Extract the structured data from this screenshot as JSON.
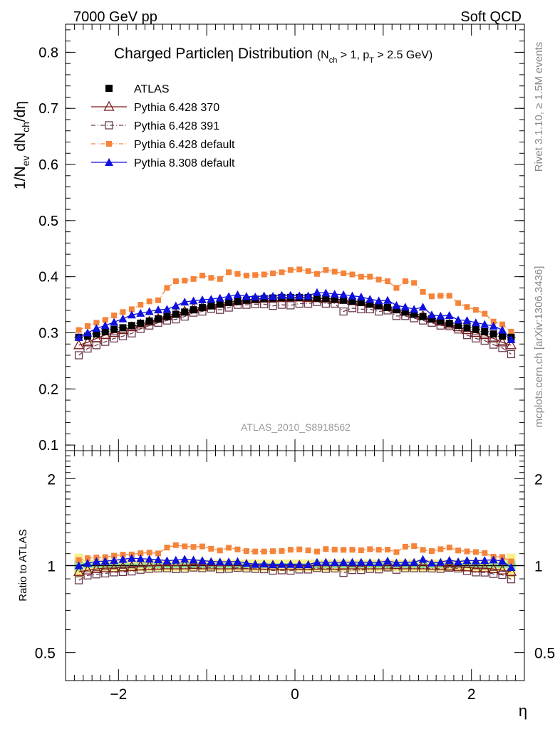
{
  "header": {
    "left": "7000 GeV pp",
    "right": "Soft QCD"
  },
  "side_labels": {
    "rivet": "Rivet 3.1.10, ≥ 1.5M events",
    "mcplots": "mcplots.cern.ch [arXiv:1306.3436]"
  },
  "chart_data": [
    {
      "type": "scatter",
      "panel": "main",
      "title": "Charged Particleη Distribution",
      "title_cut": "(N_ch > 1, p_T > 2.5 GeV)",
      "ylabel": "1/N_ev dN_ch/dη",
      "ylim": [
        0.09,
        0.85
      ],
      "xlim": [
        -2.6,
        2.6
      ],
      "analysis_label": "ATLAS_2010_S8918562",
      "legend_position": "top-left",
      "y_ticks": [
        "0.1",
        "0.2",
        "0.3",
        "0.4",
        "0.5",
        "0.6",
        "0.7",
        "0.8"
      ],
      "x": [
        -2.45,
        -2.35,
        -2.25,
        -2.15,
        -2.05,
        -1.95,
        -1.85,
        -1.75,
        -1.65,
        -1.55,
        -1.45,
        -1.35,
        -1.25,
        -1.15,
        -1.05,
        -0.95,
        -0.85,
        -0.75,
        -0.65,
        -0.55,
        -0.45,
        -0.35,
        -0.25,
        -0.15,
        -0.05,
        0.05,
        0.15,
        0.25,
        0.35,
        0.45,
        0.55,
        0.65,
        0.75,
        0.85,
        0.95,
        1.05,
        1.15,
        1.25,
        1.35,
        1.45,
        1.55,
        1.65,
        1.75,
        1.85,
        1.95,
        2.05,
        2.15,
        2.25,
        2.35,
        2.45
      ],
      "series": [
        {
          "name": "ATLAS",
          "marker": "filled-square",
          "color": "#000000",
          "values": [
            0.292,
            0.294,
            0.298,
            0.302,
            0.306,
            0.309,
            0.313,
            0.317,
            0.321,
            0.325,
            0.329,
            0.333,
            0.337,
            0.341,
            0.345,
            0.348,
            0.351,
            0.354,
            0.356,
            0.358,
            0.36,
            0.361,
            0.362,
            0.363,
            0.363,
            0.363,
            0.363,
            0.362,
            0.361,
            0.36,
            0.358,
            0.356,
            0.354,
            0.351,
            0.348,
            0.345,
            0.341,
            0.337,
            0.333,
            0.329,
            0.325,
            0.321,
            0.317,
            0.313,
            0.309,
            0.306,
            0.302,
            0.298,
            0.294,
            0.292
          ]
        },
        {
          "name": "Pythia 6.428 370",
          "marker": "open-triangle",
          "color": "#7b1a1a",
          "values": [
            0.278,
            0.283,
            0.29,
            0.296,
            0.3,
            0.305,
            0.31,
            0.315,
            0.32,
            0.325,
            0.33,
            0.334,
            0.338,
            0.343,
            0.346,
            0.349,
            0.352,
            0.355,
            0.357,
            0.359,
            0.36,
            0.361,
            0.362,
            0.362,
            0.363,
            0.363,
            0.362,
            0.362,
            0.361,
            0.36,
            0.359,
            0.357,
            0.355,
            0.352,
            0.349,
            0.346,
            0.343,
            0.338,
            0.334,
            0.33,
            0.325,
            0.32,
            0.315,
            0.31,
            0.305,
            0.3,
            0.296,
            0.29,
            0.283,
            0.278
          ]
        },
        {
          "name": "Pythia 6.428 391",
          "marker": "open-square",
          "color": "#6b3a4e",
          "values": [
            0.26,
            0.272,
            0.278,
            0.284,
            0.29,
            0.294,
            0.299,
            0.307,
            0.313,
            0.318,
            0.322,
            0.324,
            0.329,
            0.336,
            0.338,
            0.343,
            0.341,
            0.345,
            0.35,
            0.35,
            0.351,
            0.351,
            0.348,
            0.35,
            0.349,
            0.352,
            0.352,
            0.355,
            0.352,
            0.352,
            0.338,
            0.344,
            0.342,
            0.342,
            0.338,
            0.34,
            0.33,
            0.33,
            0.326,
            0.322,
            0.318,
            0.313,
            0.312,
            0.306,
            0.296,
            0.29,
            0.286,
            0.279,
            0.273,
            0.262
          ]
        },
        {
          "name": "Pythia 6.428 default",
          "marker": "filled-square-small",
          "color": "#f5843a",
          "values": [
            0.305,
            0.312,
            0.318,
            0.323,
            0.331,
            0.337,
            0.342,
            0.35,
            0.356,
            0.358,
            0.38,
            0.392,
            0.393,
            0.396,
            0.402,
            0.398,
            0.396,
            0.408,
            0.405,
            0.402,
            0.403,
            0.404,
            0.406,
            0.408,
            0.412,
            0.413,
            0.41,
            0.405,
            0.412,
            0.409,
            0.406,
            0.404,
            0.4,
            0.4,
            0.395,
            0.392,
            0.38,
            0.392,
            0.389,
            0.373,
            0.365,
            0.366,
            0.366,
            0.353,
            0.346,
            0.341,
            0.334,
            0.32,
            0.315,
            0.302
          ]
        },
        {
          "name": "Pythia 8.308 default",
          "marker": "filled-triangle",
          "color": "#1010dd",
          "values": [
            0.292,
            0.3,
            0.308,
            0.313,
            0.319,
            0.325,
            0.332,
            0.335,
            0.338,
            0.341,
            0.342,
            0.348,
            0.355,
            0.357,
            0.359,
            0.36,
            0.362,
            0.365,
            0.368,
            0.365,
            0.364,
            0.366,
            0.365,
            0.367,
            0.367,
            0.366,
            0.366,
            0.372,
            0.371,
            0.369,
            0.368,
            0.366,
            0.364,
            0.36,
            0.357,
            0.358,
            0.349,
            0.346,
            0.342,
            0.346,
            0.332,
            0.33,
            0.331,
            0.323,
            0.322,
            0.318,
            0.315,
            0.312,
            0.305,
            0.288
          ]
        }
      ]
    },
    {
      "type": "scatter",
      "panel": "ratio",
      "ylabel": "Ratio to ATLAS",
      "xlabel": "η",
      "scale": "log",
      "ylim": [
        0.4,
        2.5
      ],
      "y_ticks": [
        "0.5",
        "1",
        "2"
      ],
      "x_ticks": [
        "−2",
        "0",
        "2"
      ],
      "band": "yellow-green uncertainty band around 1",
      "series_ratios": {
        "Pythia 6.428 370": [
          0.952,
          0.963,
          0.973,
          0.98,
          0.98,
          0.987,
          0.99,
          0.994,
          0.997,
          1.0,
          1.003,
          1.003,
          1.003,
          1.006,
          1.003,
          1.003,
          1.003,
          1.003,
          1.003,
          1.003,
          1.0,
          1.0,
          1.0,
          0.997,
          1.0,
          1.0,
          0.997,
          1.0,
          1.0,
          1.0,
          1.003,
          1.003,
          1.003,
          1.003,
          1.003,
          1.003,
          1.006,
          1.003,
          1.003,
          1.003,
          1.0,
          0.997,
          0.994,
          0.99,
          0.987,
          0.98,
          0.98,
          0.973,
          0.963,
          0.952
        ],
        "Pythia 6.428 391": [
          0.89,
          0.925,
          0.933,
          0.94,
          0.948,
          0.951,
          0.955,
          0.968,
          0.975,
          0.978,
          0.979,
          0.973,
          0.976,
          0.985,
          0.98,
          0.986,
          0.972,
          0.975,
          0.983,
          0.978,
          0.975,
          0.972,
          0.961,
          0.964,
          0.961,
          0.97,
          0.97,
          0.981,
          0.975,
          0.978,
          0.944,
          0.966,
          0.966,
          0.974,
          0.971,
          0.986,
          0.968,
          0.979,
          0.979,
          0.979,
          0.978,
          0.975,
          0.984,
          0.978,
          0.958,
          0.948,
          0.947,
          0.936,
          0.929,
          0.897
        ],
        "Pythia 6.428 default": [
          1.045,
          1.061,
          1.067,
          1.07,
          1.082,
          1.091,
          1.093,
          1.104,
          1.109,
          1.102,
          1.155,
          1.177,
          1.166,
          1.161,
          1.165,
          1.144,
          1.128,
          1.153,
          1.138,
          1.123,
          1.119,
          1.119,
          1.122,
          1.124,
          1.135,
          1.138,
          1.129,
          1.119,
          1.141,
          1.136,
          1.134,
          1.135,
          1.13,
          1.14,
          1.135,
          1.136,
          1.114,
          1.163,
          1.168,
          1.134,
          1.123,
          1.14,
          1.155,
          1.128,
          1.12,
          1.114,
          1.106,
          1.074,
          1.071,
          1.034
        ],
        "Pythia 8.308 default": [
          1.0,
          1.02,
          1.034,
          1.036,
          1.043,
          1.052,
          1.061,
          1.057,
          1.053,
          1.049,
          1.04,
          1.045,
          1.053,
          1.047,
          1.041,
          1.034,
          1.031,
          1.031,
          1.034,
          1.02,
          1.011,
          1.014,
          1.008,
          1.011,
          1.011,
          1.008,
          1.008,
          1.028,
          1.028,
          1.025,
          1.028,
          1.028,
          1.028,
          1.026,
          1.026,
          1.038,
          1.023,
          1.027,
          1.027,
          1.052,
          1.022,
          1.028,
          1.044,
          1.032,
          1.042,
          1.039,
          1.043,
          1.047,
          1.037,
          0.986
        ]
      }
    }
  ]
}
